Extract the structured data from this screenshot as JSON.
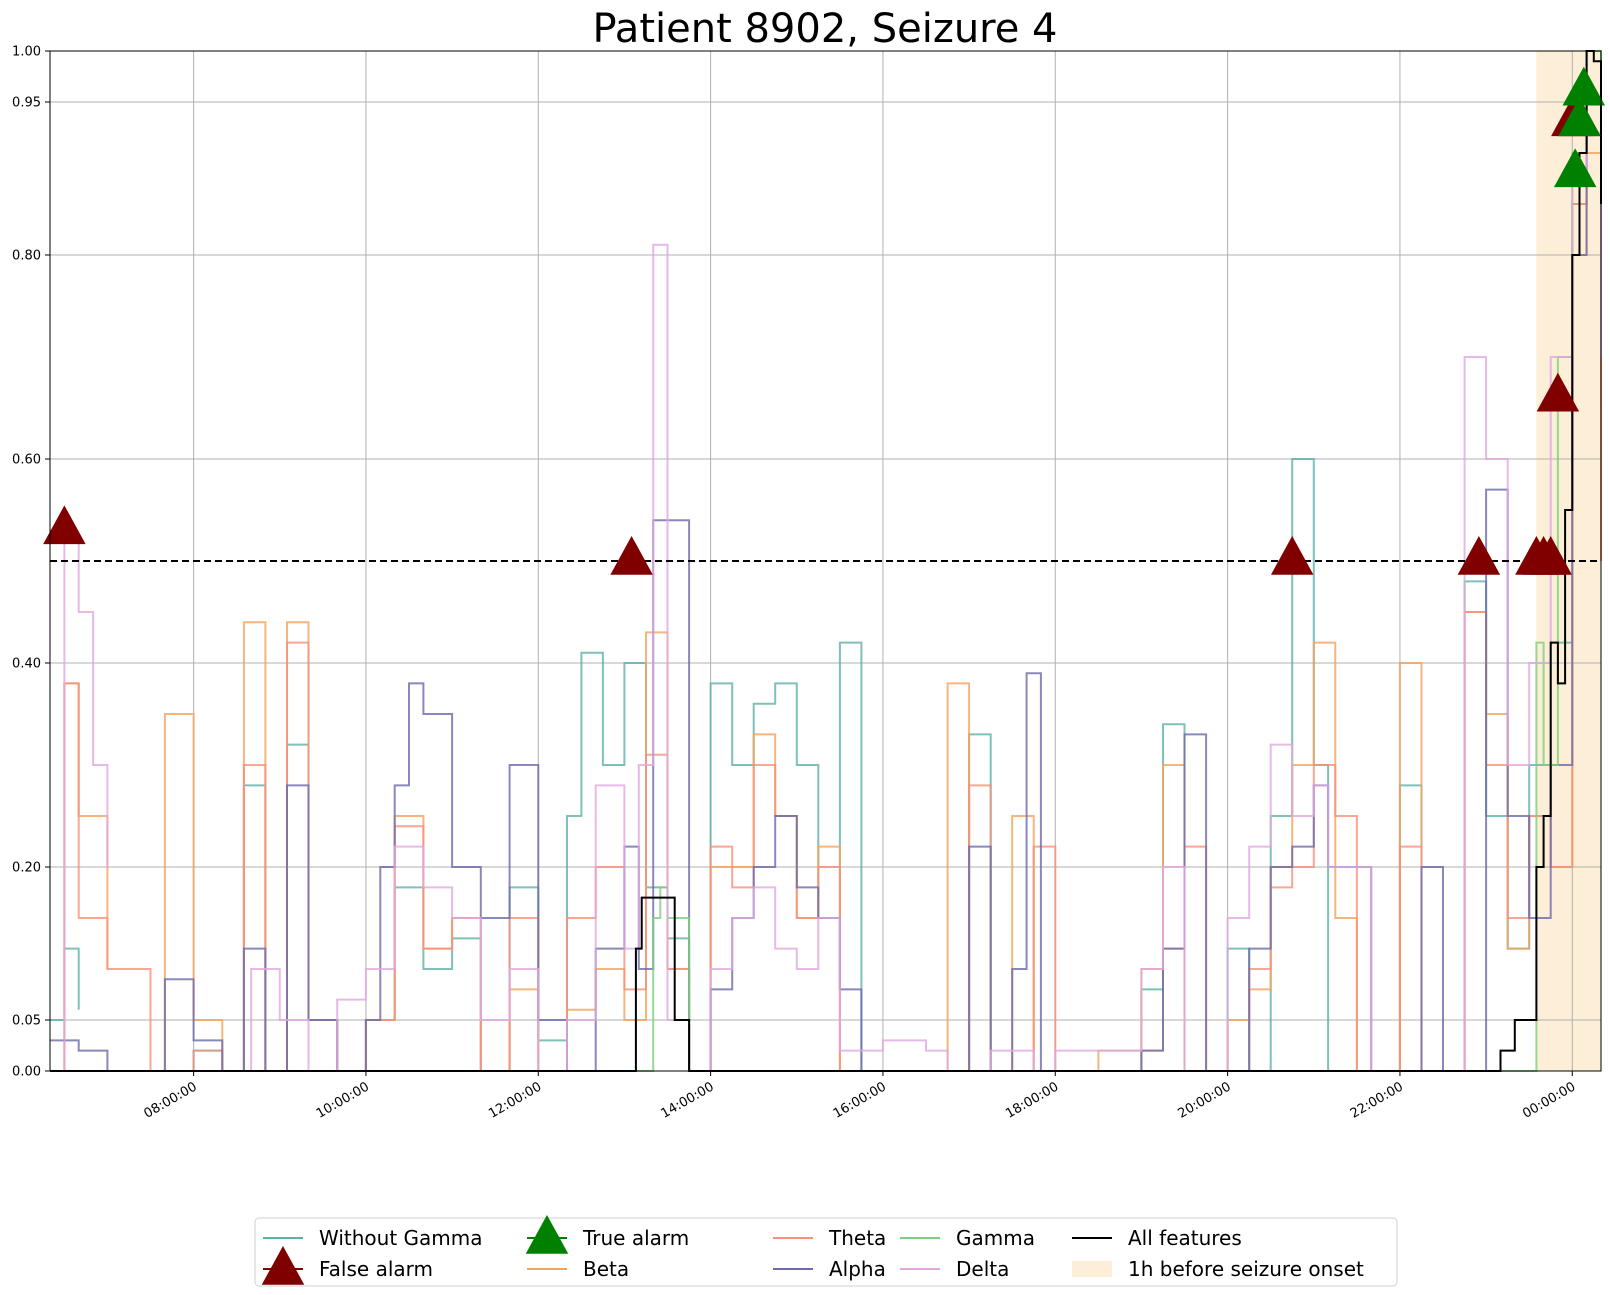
{
  "chart_data": {
    "type": "line",
    "title": "Patient 8902, Seizure 4",
    "xlabel": "",
    "ylabel": "",
    "ylim": [
      0,
      1
    ],
    "xlim": [
      "06:20:00",
      "00:20:00"
    ],
    "grid": true,
    "legend_placement": "bottom-center, below plot, 5 columns",
    "threshold": 0.5,
    "yticks": [
      "0.00",
      "0.05",
      "0.20",
      "0.40",
      "0.60",
      "0.80",
      "0.95",
      "1.00"
    ],
    "ytick_values": [
      0,
      0.05,
      0.2,
      0.4,
      0.6,
      0.8,
      0.95,
      1.0
    ],
    "xticks": [
      "08:00:00",
      "10:00:00",
      "12:00:00",
      "14:00:00",
      "16:00:00",
      "18:00:00",
      "20:00:00",
      "22:00:00",
      "00:00:00"
    ],
    "xtick_hours": [
      8,
      10,
      12,
      14,
      16,
      18,
      20,
      22,
      24
    ],
    "onset_window": {
      "label": "1h before seizure onset",
      "start": "23:35:00",
      "end": "00:20:00",
      "color": "#fdeed7"
    },
    "series": [
      {
        "name": "Without Gamma",
        "color": "#5fb0a8",
        "x": [
          "06:20",
          "06:30",
          "06:40",
          "07:00",
          "07:30",
          "08:00",
          "08:20",
          "08:35",
          "08:50",
          "09:05",
          "09:20",
          "09:40",
          "10:00",
          "10:20",
          "10:40",
          "11:00",
          "11:20",
          "11:40",
          "12:00",
          "12:20",
          "12:30",
          "12:45",
          "13:00",
          "13:15",
          "13:30",
          "13:45",
          "14:00",
          "14:15",
          "14:30",
          "14:45",
          "15:00",
          "15:15",
          "15:30",
          "15:45",
          "16:00",
          "16:30",
          "16:45",
          "17:00",
          "17:15",
          "17:30",
          "17:45",
          "18:00",
          "18:30",
          "19:00",
          "19:15",
          "19:30",
          "19:45",
          "20:00",
          "20:15",
          "20:30",
          "20:45",
          "21:00",
          "21:10",
          "21:40",
          "22:00",
          "22:15",
          "22:30",
          "22:45",
          "23:00",
          "23:15",
          "23:30",
          "23:45",
          "00:00",
          "00:10",
          "00:20"
        ],
        "y": [
          0.05,
          0.12,
          0.06,
          null,
          0.0,
          0.02,
          0.0,
          0.28,
          0.0,
          0.32,
          0.05,
          0.0,
          0.05,
          0.18,
          0.1,
          0.13,
          0.0,
          0.18,
          0.03,
          0.25,
          0.41,
          0.3,
          0.4,
          0.18,
          0.13,
          0.0,
          0.38,
          0.3,
          0.36,
          0.38,
          0.3,
          0.15,
          0.42,
          0.0,
          0.0,
          0.0,
          0.0,
          0.33,
          0.0,
          0.0,
          0.0,
          0.0,
          0.0,
          0.08,
          0.34,
          0.0,
          0.0,
          0.12,
          0.0,
          0.25,
          0.6,
          0.3,
          0.0,
          0.0,
          0.28,
          0.0,
          0.0,
          0.48,
          0.25,
          0.12,
          0.3,
          0.42,
          0.85,
          1.0,
          0.65
        ]
      },
      {
        "name": "Beta",
        "color": "#f4a25c",
        "x": [
          "06:20",
          "06:30",
          "06:40",
          "07:00",
          "07:20",
          "07:30",
          "07:40",
          "08:00",
          "08:20",
          "08:35",
          "08:50",
          "09:05",
          "09:20",
          "09:40",
          "10:00",
          "10:20",
          "10:40",
          "11:00",
          "11:20",
          "11:40",
          "12:00",
          "12:20",
          "12:40",
          "13:00",
          "13:15",
          "13:30",
          "13:45",
          "14:00",
          "14:15",
          "14:30",
          "14:45",
          "15:00",
          "15:15",
          "15:30",
          "15:45",
          "16:00",
          "16:30",
          "16:45",
          "17:00",
          "17:15",
          "17:30",
          "17:45",
          "18:00",
          "18:30",
          "19:00",
          "19:15",
          "19:30",
          "19:45",
          "20:00",
          "20:15",
          "20:30",
          "20:45",
          "21:00",
          "21:15",
          "21:30",
          "21:40",
          "22:00",
          "22:15",
          "22:30",
          "22:45",
          "23:00",
          "23:15",
          "23:30",
          "23:45",
          "00:00",
          "00:10",
          "00:20"
        ],
        "y": [
          0.0,
          0.38,
          0.25,
          0.1,
          null,
          0.0,
          0.35,
          0.05,
          0.0,
          0.44,
          0.0,
          0.44,
          0.05,
          0.0,
          0.05,
          0.25,
          0.12,
          0.15,
          0.0,
          0.08,
          0.0,
          0.06,
          0.1,
          0.05,
          0.43,
          0.1,
          0.0,
          0.2,
          0.2,
          0.33,
          0.25,
          0.15,
          0.22,
          0.0,
          0.0,
          0.0,
          0.0,
          0.38,
          0.0,
          0.0,
          0.25,
          0.0,
          0.0,
          0.02,
          0.1,
          0.3,
          0.0,
          0.0,
          0.05,
          0.08,
          0.2,
          0.3,
          0.42,
          0.15,
          0.0,
          0.0,
          0.4,
          0.0,
          0.0,
          0.45,
          0.35,
          0.12,
          0.25,
          0.2,
          0.8,
          0.9,
          0.5
        ]
      },
      {
        "name": "Theta",
        "color": "#f8907a",
        "x": [
          "06:20",
          "06:30",
          "06:40",
          "07:00",
          "07:30",
          "08:00",
          "08:20",
          "08:35",
          "08:50",
          "09:05",
          "09:20",
          "09:40",
          "10:00",
          "10:20",
          "10:40",
          "11:00",
          "11:20",
          "11:40",
          "12:00",
          "12:20",
          "12:40",
          "13:00",
          "13:15",
          "13:30",
          "13:45",
          "14:00",
          "14:15",
          "14:30",
          "14:45",
          "15:00",
          "15:15",
          "15:30",
          "15:45",
          "16:00",
          "16:30",
          "16:45",
          "17:00",
          "17:15",
          "17:30",
          "17:45",
          "18:00",
          "18:30",
          "19:00",
          "19:15",
          "19:30",
          "19:45",
          "20:00",
          "20:15",
          "20:30",
          "20:45",
          "21:00",
          "21:15",
          "21:30",
          "21:40",
          "22:00",
          "22:15",
          "22:30",
          "22:45",
          "23:00",
          "23:15",
          "23:30",
          "23:45",
          "00:00",
          "00:10",
          "00:20"
        ],
        "y": [
          0.0,
          0.38,
          0.15,
          0.1,
          0.0,
          0.02,
          0.0,
          0.3,
          0.0,
          0.42,
          0.05,
          0.0,
          0.05,
          0.24,
          0.12,
          0.15,
          0.0,
          0.15,
          0.0,
          0.15,
          0.2,
          0.08,
          0.31,
          0.1,
          0.0,
          0.22,
          0.18,
          0.3,
          0.25,
          0.15,
          0.2,
          0.0,
          0.0,
          0.0,
          0.0,
          0.0,
          0.28,
          0.0,
          0.0,
          0.22,
          0.0,
          0.0,
          0.02,
          0.12,
          0.22,
          0.0,
          0.0,
          0.1,
          0.18,
          0.2,
          0.3,
          0.25,
          0.0,
          0.0,
          0.22,
          0.0,
          0.0,
          0.45,
          0.3,
          0.15,
          0.25,
          0.2,
          0.85,
          0.95,
          0.5
        ]
      },
      {
        "name": "Alpha",
        "color": "#6a6aad",
        "x": [
          "06:20",
          "06:30",
          "06:40",
          "07:00",
          "07:10",
          "07:30",
          "07:40",
          "08:00",
          "08:20",
          "08:35",
          "08:50",
          "09:05",
          "09:20",
          "09:40",
          "10:00",
          "10:10",
          "10:20",
          "10:30",
          "10:40",
          "11:00",
          "11:20",
          "11:40",
          "12:00",
          "12:20",
          "12:40",
          "13:00",
          "13:10",
          "13:20",
          "13:45",
          "14:00",
          "14:15",
          "14:30",
          "14:45",
          "15:00",
          "15:15",
          "15:30",
          "15:45",
          "16:00",
          "16:30",
          "16:45",
          "17:00",
          "17:15",
          "17:30",
          "17:40",
          "17:50",
          "18:00",
          "18:30",
          "19:00",
          "19:15",
          "19:30",
          "19:45",
          "20:00",
          "20:15",
          "20:30",
          "20:45",
          "21:00",
          "21:10",
          "21:40",
          "22:00",
          "22:15",
          "22:30",
          "22:45",
          "23:00",
          "23:15",
          "23:30",
          "23:45",
          "00:00",
          "00:10",
          "00:20"
        ],
        "y": [
          0.03,
          0.03,
          0.02,
          0.0,
          null,
          0.0,
          0.09,
          0.03,
          0.0,
          0.12,
          0.0,
          0.28,
          0.05,
          0.0,
          0.05,
          0.2,
          0.28,
          0.38,
          0.35,
          0.2,
          0.15,
          0.3,
          0.05,
          0.0,
          0.12,
          0.22,
          0.1,
          0.54,
          0.0,
          0.08,
          0.15,
          0.2,
          0.25,
          0.18,
          0.15,
          0.08,
          0.0,
          0.0,
          0.0,
          0.0,
          0.22,
          0.0,
          0.1,
          0.39,
          0.0,
          0.0,
          0.0,
          0.02,
          0.12,
          0.33,
          0.0,
          0.0,
          0.12,
          0.2,
          0.22,
          0.28,
          0.2,
          0.0,
          0.0,
          0.2,
          0.0,
          0.0,
          0.57,
          0.25,
          0.15,
          0.3,
          0.8,
          0.95,
          0.7
        ]
      },
      {
        "name": "Gamma",
        "color": "#7ccf7c",
        "x": [
          "06:20",
          "13:15",
          "13:20",
          "13:25",
          "13:30",
          "13:45",
          "14:00",
          "23:35",
          "23:40",
          "23:50",
          "00:00",
          "00:10",
          "00:20"
        ],
        "y": [
          0.0,
          0.0,
          0.15,
          0.18,
          0.15,
          0.0,
          0.0,
          0.42,
          0.3,
          0.7,
          0.9,
          1.0,
          0.7
        ]
      },
      {
        "name": "Delta",
        "color": "#e0a8e0",
        "x": [
          "06:20",
          "06:30",
          "06:40",
          "06:50",
          "07:00",
          "07:30",
          "08:00",
          "08:20",
          "08:40",
          "09:00",
          "09:20",
          "09:40",
          "10:00",
          "10:20",
          "10:40",
          "11:00",
          "11:20",
          "11:40",
          "12:00",
          "12:20",
          "12:40",
          "13:00",
          "13:10",
          "13:20",
          "13:30",
          "13:45",
          "14:00",
          "14:15",
          "14:30",
          "14:45",
          "15:00",
          "15:15",
          "15:30",
          "15:45",
          "16:00",
          "16:30",
          "16:45",
          "17:00",
          "17:15",
          "17:30",
          "17:45",
          "18:00",
          "18:30",
          "19:00",
          "19:15",
          "19:30",
          "19:45",
          "20:00",
          "20:15",
          "20:30",
          "20:45",
          "21:00",
          "21:10",
          "21:40",
          "22:00",
          "22:15",
          "22:30",
          "22:45",
          "23:00",
          "23:15",
          "23:30",
          "23:45",
          "00:00",
          "00:10",
          "00:20"
        ],
        "y": [
          0.0,
          0.52,
          0.45,
          0.3,
          0.2,
          null,
          0.0,
          0.0,
          0.1,
          0.05,
          0.0,
          0.07,
          0.1,
          0.22,
          0.18,
          0.15,
          0.05,
          0.1,
          0.0,
          0.05,
          0.28,
          0.12,
          0.3,
          0.81,
          0.05,
          0.0,
          0.1,
          0.15,
          0.18,
          0.12,
          0.1,
          0.15,
          0.02,
          0.02,
          0.03,
          0.02,
          0.0,
          0.0,
          0.02,
          0.02,
          0.0,
          0.02,
          0.02,
          0.1,
          0.2,
          0.0,
          0.0,
          0.15,
          0.22,
          0.32,
          0.25,
          0.28,
          0.2,
          0.0,
          0.0,
          0.0,
          0.0,
          0.7,
          0.6,
          0.3,
          0.4,
          0.7,
          0.88,
          0.92,
          0.7
        ]
      },
      {
        "name": "All features",
        "color": "#000000",
        "x": [
          "06:20",
          "13:00",
          "13:08",
          "13:12",
          "13:30",
          "13:35",
          "13:45",
          "14:00",
          "23:00",
          "23:10",
          "23:20",
          "23:30",
          "23:35",
          "23:40",
          "23:45",
          "23:50",
          "23:55",
          "00:00",
          "00:05",
          "00:10",
          "00:15",
          "00:20"
        ],
        "y": [
          0.0,
          0.0,
          0.12,
          0.17,
          0.17,
          0.05,
          0.0,
          0.0,
          0.0,
          0.02,
          0.05,
          0.05,
          0.2,
          0.25,
          0.42,
          0.38,
          0.55,
          0.8,
          0.9,
          1.0,
          0.99,
          0.85
        ]
      }
    ],
    "markers": {
      "false_alarm": {
        "label": "False alarm",
        "color": "#800000",
        "points": [
          [
            "06:30",
            0.53
          ],
          [
            "13:05",
            0.5
          ],
          [
            "20:45",
            0.5
          ],
          [
            "22:55",
            0.5
          ],
          [
            "23:35",
            0.5
          ],
          [
            "23:40",
            0.5
          ],
          [
            "23:45",
            0.5
          ],
          [
            "23:50",
            0.66
          ],
          [
            "00:00",
            0.93
          ],
          [
            "00:05",
            0.93
          ]
        ]
      },
      "true_alarm": {
        "label": "True alarm",
        "color": "#008000",
        "points": [
          [
            "00:02",
            0.88
          ],
          [
            "00:05",
            0.93
          ],
          [
            "00:08",
            0.96
          ]
        ]
      }
    },
    "legend": [
      [
        "Without Gamma",
        "False alarm"
      ],
      [
        "True alarm",
        "Beta"
      ],
      [
        "Theta",
        "Alpha"
      ],
      [
        "Gamma",
        "Delta"
      ],
      [
        "All features",
        "1h before seizure onset"
      ]
    ]
  }
}
